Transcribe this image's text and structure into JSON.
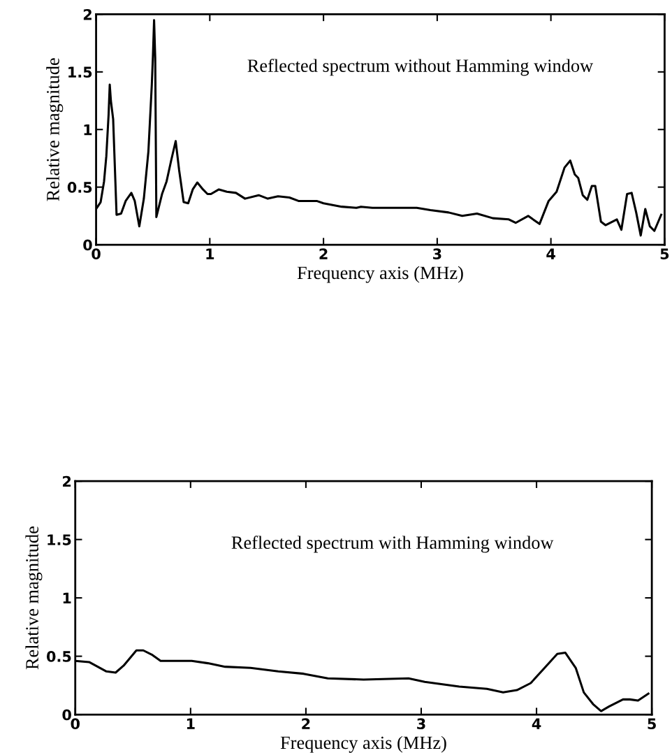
{
  "chart_data": [
    {
      "type": "line",
      "xlabel": "Frequency axis (MHz)",
      "ylabel": "Relative magnitude",
      "annotations": [
        "Reflected spectrum without Hamming window"
      ],
      "xlim": [
        0,
        5
      ],
      "ylim": [
        0,
        2
      ],
      "xticks": [
        0,
        1,
        2,
        3,
        4,
        5
      ],
      "yticks": [
        0,
        0.5,
        1,
        1.5,
        2
      ],
      "grid": false,
      "legend": false,
      "marker": "none",
      "line_style": "solid",
      "series": [
        {
          "color": "#000000",
          "x": [
            0,
            0.04,
            0.07,
            0.09,
            0.11,
            0.12,
            0.13,
            0.15,
            0.18,
            0.22,
            0.26,
            0.31,
            0.34,
            0.38,
            0.42,
            0.46,
            0.49,
            0.5,
            0.51,
            0.52,
            0.53,
            0.58,
            0.62,
            0.66,
            0.7,
            0.73,
            0.77,
            0.81,
            0.85,
            0.89,
            0.94,
            0.98,
            1.01,
            1.08,
            1.15,
            1.23,
            1.31,
            1.43,
            1.51,
            1.6,
            1.7,
            1.78,
            1.94,
            2.0,
            2.16,
            2.29,
            2.33,
            2.43,
            2.51,
            2.82,
            2.94,
            3.1,
            3.22,
            3.35,
            3.49,
            3.63,
            3.69,
            3.8,
            3.9,
            3.98,
            4.05,
            4.12,
            4.17,
            4.21,
            4.24,
            4.28,
            4.32,
            4.36,
            4.39,
            4.44,
            4.48,
            4.58,
            4.62,
            4.67,
            4.71,
            4.75,
            4.79,
            4.83,
            4.87,
            4.91,
            4.97
          ],
          "values": [
            0.31,
            0.37,
            0.55,
            0.77,
            1.13,
            1.39,
            1.25,
            1.09,
            0.26,
            0.27,
            0.38,
            0.45,
            0.38,
            0.16,
            0.4,
            0.81,
            1.39,
            1.64,
            1.95,
            1.62,
            0.24,
            0.44,
            0.55,
            0.73,
            0.9,
            0.65,
            0.37,
            0.36,
            0.48,
            0.54,
            0.48,
            0.44,
            0.44,
            0.48,
            0.46,
            0.45,
            0.4,
            0.43,
            0.4,
            0.42,
            0.41,
            0.38,
            0.38,
            0.36,
            0.33,
            0.32,
            0.33,
            0.32,
            0.32,
            0.32,
            0.3,
            0.28,
            0.25,
            0.27,
            0.23,
            0.22,
            0.19,
            0.25,
            0.18,
            0.38,
            0.46,
            0.67,
            0.73,
            0.61,
            0.58,
            0.43,
            0.39,
            0.51,
            0.51,
            0.2,
            0.17,
            0.22,
            0.13,
            0.44,
            0.45,
            0.28,
            0.08,
            0.31,
            0.16,
            0.12,
            0.26
          ]
        }
      ]
    },
    {
      "type": "line",
      "xlabel": "Frequency axis (MHz)",
      "ylabel": "Relative magnitude",
      "annotations": [
        "Reflected spectrum with Hamming window"
      ],
      "xlim": [
        0,
        5
      ],
      "ylim": [
        0,
        2
      ],
      "xticks": [
        0,
        1,
        2,
        3,
        4,
        5
      ],
      "yticks": [
        0,
        0.5,
        1,
        1.5,
        2
      ],
      "grid": false,
      "legend": false,
      "marker": "none",
      "line_style": "solid",
      "series": [
        {
          "color": "#000000",
          "x": [
            0,
            0.12,
            0.27,
            0.35,
            0.42,
            0.53,
            0.59,
            0.67,
            0.74,
            1.01,
            1.15,
            1.3,
            1.52,
            1.76,
            1.98,
            2.19,
            2.5,
            2.89,
            3.03,
            3.33,
            3.57,
            3.71,
            3.83,
            3.95,
            4.07,
            4.18,
            4.25,
            4.34,
            4.41,
            4.49,
            4.56,
            4.63,
            4.75,
            4.81,
            4.88,
            4.97
          ],
          "values": [
            0.46,
            0.45,
            0.37,
            0.36,
            0.42,
            0.55,
            0.55,
            0.51,
            0.46,
            0.46,
            0.44,
            0.41,
            0.4,
            0.37,
            0.35,
            0.31,
            0.3,
            0.31,
            0.28,
            0.24,
            0.22,
            0.19,
            0.21,
            0.27,
            0.4,
            0.52,
            0.53,
            0.4,
            0.19,
            0.09,
            0.03,
            0.07,
            0.13,
            0.13,
            0.12,
            0.18
          ]
        }
      ]
    }
  ]
}
